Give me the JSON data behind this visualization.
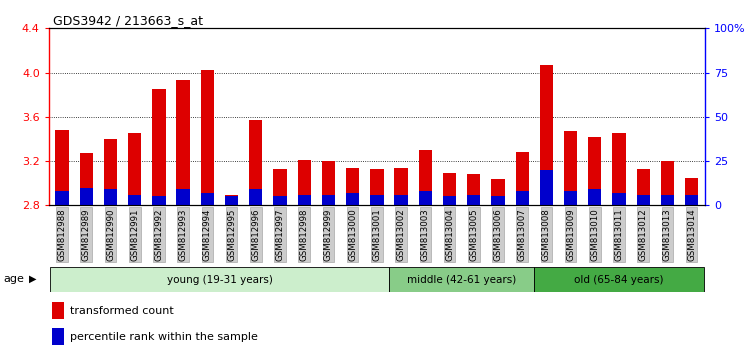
{
  "title": "GDS3942 / 213663_s_at",
  "samples": [
    "GSM812988",
    "GSM812989",
    "GSM812990",
    "GSM812991",
    "GSM812992",
    "GSM812993",
    "GSM812994",
    "GSM812995",
    "GSM812996",
    "GSM812997",
    "GSM812998",
    "GSM812999",
    "GSM813000",
    "GSM813001",
    "GSM813002",
    "GSM813003",
    "GSM813004",
    "GSM813005",
    "GSM813006",
    "GSM813007",
    "GSM813008",
    "GSM813009",
    "GSM813010",
    "GSM813011",
    "GSM813012",
    "GSM813013",
    "GSM813014"
  ],
  "transformed_count": [
    3.48,
    3.27,
    3.4,
    3.45,
    3.85,
    3.93,
    4.02,
    2.89,
    3.57,
    3.13,
    3.21,
    3.2,
    3.14,
    3.13,
    3.14,
    3.3,
    3.09,
    3.08,
    3.04,
    3.28,
    4.07,
    3.47,
    3.42,
    3.45,
    3.13,
    3.2,
    3.05
  ],
  "percentile_rank_pct": [
    8,
    10,
    9,
    6,
    5,
    9,
    7,
    5,
    9,
    5,
    6,
    6,
    7,
    6,
    6,
    8,
    5,
    6,
    5,
    8,
    20,
    8,
    9,
    7,
    6,
    6,
    6
  ],
  "y_min": 2.8,
  "y_max": 4.4,
  "y_ticks": [
    2.8,
    3.2,
    3.6,
    4.0,
    4.4
  ],
  "y2_ticks_pct": [
    0,
    25,
    50,
    75,
    100
  ],
  "bar_color_red": "#dd0000",
  "bar_color_blue": "#0000cc",
  "groups": [
    {
      "label": "young (19-31 years)",
      "start": 0,
      "end": 14,
      "color": "#cceecc"
    },
    {
      "label": "middle (42-61 years)",
      "start": 14,
      "end": 20,
      "color": "#88cc88"
    },
    {
      "label": "old (65-84 years)",
      "start": 20,
      "end": 27,
      "color": "#44aa44"
    }
  ],
  "legend_items": [
    {
      "label": "transformed count",
      "color": "#dd0000"
    },
    {
      "label": "percentile rank within the sample",
      "color": "#0000cc"
    }
  ],
  "age_label": "age",
  "bar_width": 0.55
}
